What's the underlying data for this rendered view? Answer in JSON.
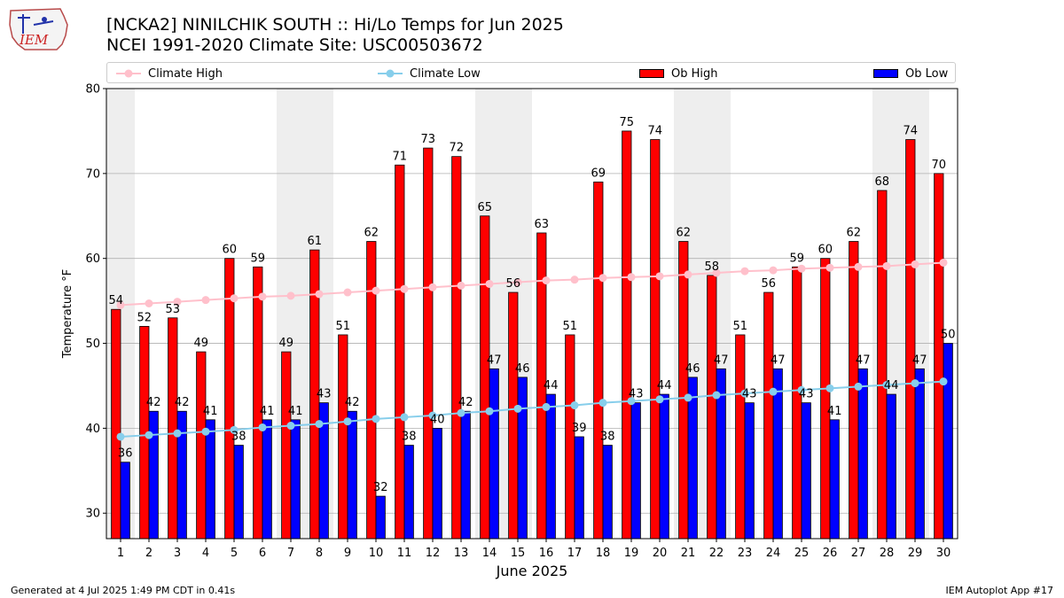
{
  "header": {
    "title_line1": "[NCKA2] NINILCHIK SOUTH :: Hi/Lo Temps for Jun 2025",
    "title_line2": "NCEI 1991-2020 Climate Site: USC00503672",
    "logo_text": "IEM"
  },
  "footer": {
    "left": "Generated at 4 Jul 2025 1:49 PM CDT in 0.41s",
    "right": "IEM Autoplot App #17"
  },
  "colors": {
    "ob_high": "#ff0000",
    "ob_low": "#0000ff",
    "climate_high": "#ffc0cb",
    "climate_low": "#87ceeb",
    "weekend_shade": "#eeeeee",
    "grid": "#b0b0b0"
  },
  "chart_data": {
    "type": "bar",
    "xlabel": "June 2025",
    "ylabel": "Temperature °F",
    "ylim": [
      27,
      80
    ],
    "yticks": [
      30,
      40,
      50,
      60,
      70,
      80
    ],
    "grid": true,
    "legend_position": "top",
    "categories": [
      "1",
      "2",
      "3",
      "4",
      "5",
      "6",
      "7",
      "8",
      "9",
      "10",
      "11",
      "12",
      "13",
      "14",
      "15",
      "16",
      "17",
      "18",
      "19",
      "20",
      "21",
      "22",
      "23",
      "24",
      "25",
      "26",
      "27",
      "28",
      "29",
      "30"
    ],
    "shaded_days": [
      1,
      7,
      8,
      14,
      15,
      21,
      22,
      28,
      29
    ],
    "series": [
      {
        "name": "Ob High",
        "kind": "bar",
        "color": "#ff0000",
        "values": [
          54,
          52,
          53,
          49,
          60,
          59,
          49,
          61,
          51,
          62,
          71,
          73,
          72,
          65,
          56,
          63,
          51,
          69,
          75,
          74,
          62,
          58,
          51,
          56,
          59,
          60,
          62,
          68,
          74,
          70
        ]
      },
      {
        "name": "Ob Low",
        "kind": "bar",
        "color": "#0000ff",
        "values": [
          36,
          42,
          42,
          41,
          38,
          41,
          41,
          43,
          42,
          32,
          38,
          40,
          42,
          47,
          46,
          44,
          39,
          38,
          43,
          44,
          46,
          47,
          43,
          47,
          43,
          41,
          47,
          44,
          47,
          50
        ]
      },
      {
        "name": "Climate High",
        "kind": "line",
        "color": "#ffc0cb",
        "values": [
          54.5,
          54.7,
          54.9,
          55.1,
          55.3,
          55.5,
          55.6,
          55.8,
          56.0,
          56.2,
          56.4,
          56.6,
          56.8,
          57.0,
          57.2,
          57.4,
          57.5,
          57.7,
          57.8,
          57.9,
          58.1,
          58.3,
          58.5,
          58.6,
          58.8,
          58.9,
          59.0,
          59.1,
          59.3,
          59.5
        ]
      },
      {
        "name": "Climate Low",
        "kind": "line",
        "color": "#87ceeb",
        "values": [
          39.0,
          39.2,
          39.4,
          39.6,
          39.8,
          40.1,
          40.3,
          40.5,
          40.8,
          41.1,
          41.3,
          41.5,
          41.8,
          42.0,
          42.3,
          42.5,
          42.7,
          43.0,
          43.2,
          43.4,
          43.6,
          43.9,
          44.1,
          44.3,
          44.5,
          44.7,
          44.9,
          45.1,
          45.3,
          45.5
        ]
      }
    ]
  }
}
